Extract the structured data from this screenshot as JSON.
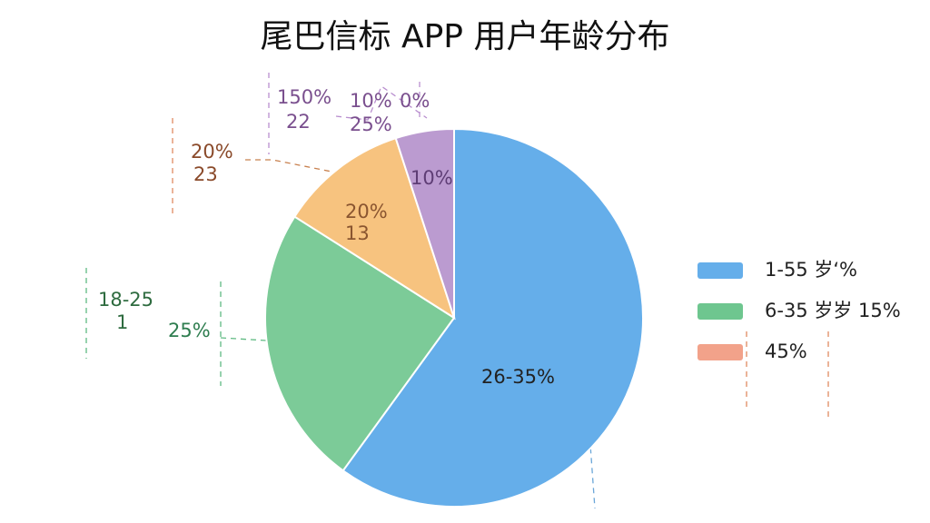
{
  "chart_data": {
    "type": "pie",
    "title": "尾巴信标 APP 用户年龄分布",
    "values": [
      60,
      24,
      11,
      5
    ],
    "colors": [
      "#65aeea",
      "#7ccb98",
      "#f7c37f",
      "#bb9bd0"
    ],
    "legend": [
      {
        "name": "1-55 岁‘%",
        "color": "#65aeea"
      },
      {
        "name": "6-35 岁岁 15%",
        "color": "#6ec68f"
      },
      {
        "name": "45%",
        "color": "#f2a28a"
      }
    ],
    "annotations": [
      "26-35%",
      "25%",
      "18-25",
      "1",
      "20%",
      "13",
      "20%",
      "23",
      "150%",
      "22",
      "10%",
      "25%",
      "0%",
      "10%"
    ]
  }
}
